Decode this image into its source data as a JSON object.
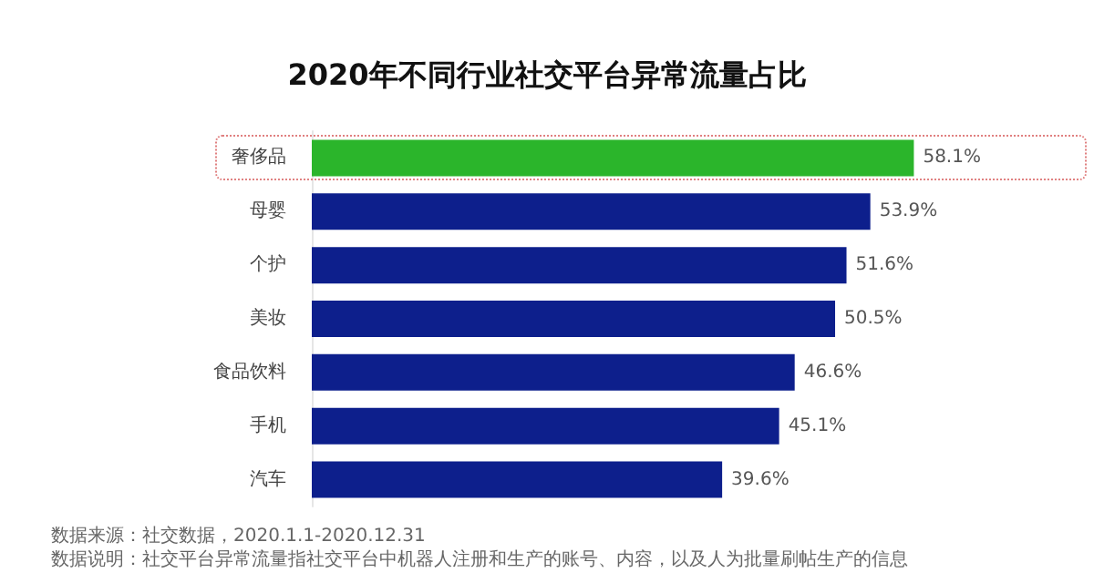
{
  "chart_data": {
    "type": "bar",
    "orientation": "horizontal",
    "title": "2020年不同行业社交平台异常流量占比",
    "categories": [
      "奢侈品",
      "母婴",
      "个护",
      "美妆",
      "食品饮料",
      "手机",
      "汽车"
    ],
    "values": [
      58.1,
      53.9,
      51.6,
      50.5,
      46.6,
      45.1,
      39.6
    ],
    "value_labels": [
      "58.1%",
      "53.9%",
      "51.6%",
      "50.5%",
      "46.6%",
      "45.1%",
      "39.6%"
    ],
    "colors": [
      "#2bb52b",
      "#0d1f8c",
      "#0d1f8c",
      "#0d1f8c",
      "#0d1f8c",
      "#0d1f8c",
      "#0d1f8c"
    ],
    "annotations": [
      "数据来源：社交数据，2020.1.1-2020.12.31",
      "数据说明：社交平台异常流量指社交平台中机器人注册和生产的账号、内容，以及人为批量刷帖生产的信息"
    ]
  }
}
